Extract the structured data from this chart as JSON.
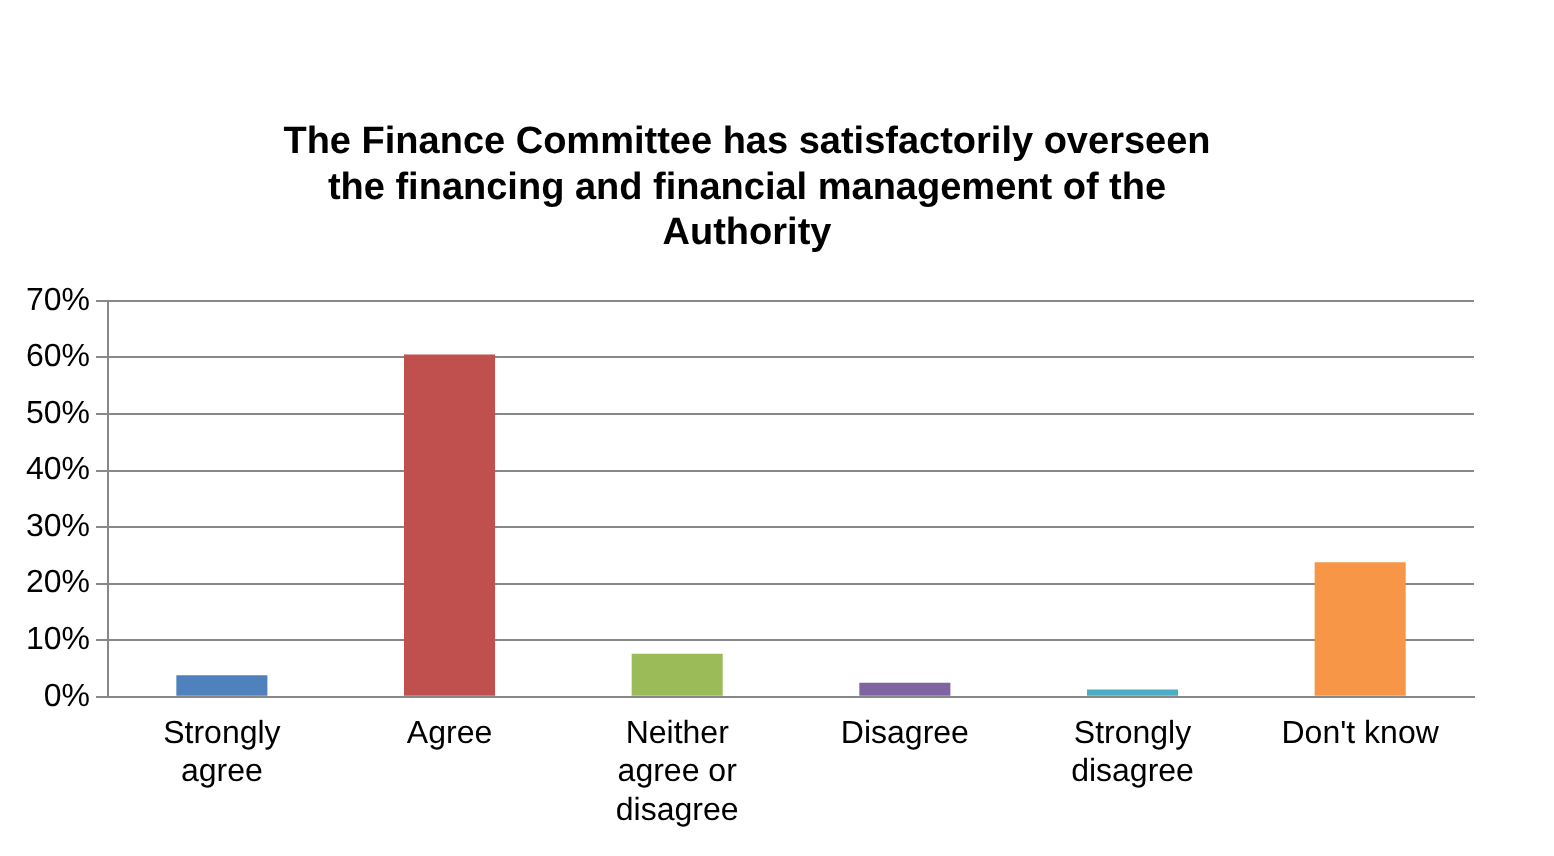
{
  "chart_data": {
    "type": "bar",
    "title": "The Finance Committee has satisfactorily overseen the financing and financial management of the Authority",
    "categories": [
      "Strongly agree",
      "Agree",
      "Neither agree or disagree",
      "Disagree",
      "Strongly disagree",
      "Don't know"
    ],
    "values": [
      3.8,
      60.5,
      7.6,
      2.5,
      1.3,
      23.8
    ],
    "colors": [
      "#4f81bd",
      "#c0504d",
      "#9bbb59",
      "#8064a2",
      "#4bacc6",
      "#f79646"
    ],
    "ylim": [
      0,
      70
    ],
    "yticks": [
      {
        "value": 0,
        "label": "0%"
      },
      {
        "value": 10,
        "label": "10%"
      },
      {
        "value": 20,
        "label": "20%"
      },
      {
        "value": 30,
        "label": "30%"
      },
      {
        "value": 40,
        "label": "40%"
      },
      {
        "value": 50,
        "label": "50%"
      },
      {
        "value": 60,
        "label": "60%"
      },
      {
        "value": 70,
        "label": "70%"
      }
    ],
    "grid": "y",
    "legend": false
  }
}
